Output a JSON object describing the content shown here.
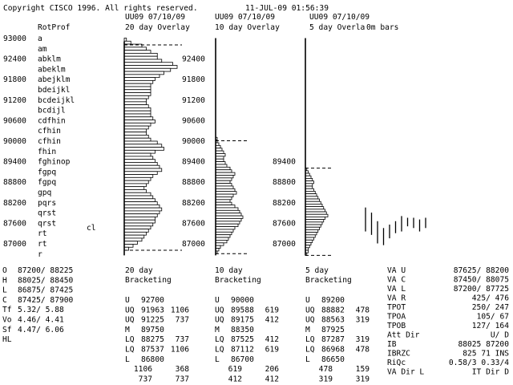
{
  "header": {
    "copyright": "Copyright CISCO 1996. All rights reserved.",
    "datetime": "11-JUL-09 01:56:39",
    "symbols": [
      "UU09 07/10/09",
      "UU09 07/10/09",
      "UU09 07/10/09"
    ],
    "titles": [
      "20 day Overlay",
      "10 day Overlay",
      "5 day Overla",
      "0m  bars"
    ],
    "rotprof_label": "RotProf",
    "cl_label": "cl"
  },
  "profile_rows": [
    {
      "price": "93000",
      "letters": "a"
    },
    {
      "price": "",
      "letters": "am"
    },
    {
      "price": "92400",
      "letters": "abklm"
    },
    {
      "price": "",
      "letters": "abeklm"
    },
    {
      "price": "91800",
      "letters": "abejklm"
    },
    {
      "price": "",
      "letters": "bdeijkl"
    },
    {
      "price": "91200",
      "letters": "bcdeijkl"
    },
    {
      "price": "",
      "letters": "bcdijl"
    },
    {
      "price": "90600",
      "letters": "cdfhin"
    },
    {
      "price": "",
      "letters": "cfhin"
    },
    {
      "price": "90000",
      "letters": "cfhin"
    },
    {
      "price": "",
      "letters": "fhin"
    },
    {
      "price": "89400",
      "letters": "fghinop"
    },
    {
      "price": "",
      "letters": "fgpq"
    },
    {
      "price": "88800",
      "letters": "fgpq"
    },
    {
      "price": "",
      "letters": "gpq"
    },
    {
      "price": "88200",
      "letters": "pqrs"
    },
    {
      "price": "",
      "letters": "qrst"
    },
    {
      "price": "87600",
      "letters": "qrst"
    },
    {
      "price": "",
      "letters": "rt"
    },
    {
      "price": "87000",
      "letters": "rt"
    },
    {
      "price": "",
      "letters": "r"
    }
  ],
  "axis_labels": {
    "panel20": [
      "92400",
      "91800",
      "91200",
      "90600",
      "90000",
      "89400",
      "88800",
      "88200",
      "87600",
      "87000"
    ],
    "panel10": [
      "89400",
      "88800",
      "88200",
      "87600",
      "87000"
    ]
  },
  "ohlc": [
    {
      "label": "O",
      "value": "87200/ 88225"
    },
    {
      "label": "H",
      "value": "88025/ 88450"
    },
    {
      "label": "L",
      "value": "86875/ 87425"
    },
    {
      "label": "C",
      "value": "87425/ 87900"
    },
    {
      "label": "Tf",
      "value": "5.32/     5.88"
    },
    {
      "label": "Vo",
      "value": "4.46/     4.41"
    },
    {
      "label": "Sf",
      "value": "4.47/     6.06"
    },
    {
      "label": "HL",
      "value": ""
    }
  ],
  "bracketing": [
    {
      "days": "20 day",
      "title": "Bracketing",
      "rows": [
        {
          "label": "U",
          "value": "92700",
          "extra": ""
        },
        {
          "label": "UQ",
          "value": "91963",
          "extra": "1106"
        },
        {
          "label": "UQ",
          "value": "91225",
          "extra": "737"
        },
        {
          "label": "M",
          "value": "89750",
          "extra": ""
        },
        {
          "label": "LQ",
          "value": "88275",
          "extra": "737"
        },
        {
          "label": "LQ",
          "value": "87537",
          "extra": "1106"
        },
        {
          "label": "L",
          "value": "86800",
          "extra": ""
        }
      ],
      "totals": [
        [
          "1106",
          "368"
        ],
        [
          "737",
          "737"
        ]
      ]
    },
    {
      "days": "10 day",
      "title": "Bracketing",
      "rows": [
        {
          "label": "U",
          "value": "90000",
          "extra": ""
        },
        {
          "label": "UQ",
          "value": "89588",
          "extra": "619"
        },
        {
          "label": "UQ",
          "value": "89175",
          "extra": "412"
        },
        {
          "label": "M",
          "value": "88350",
          "extra": ""
        },
        {
          "label": "LQ",
          "value": "87525",
          "extra": "412"
        },
        {
          "label": "LQ",
          "value": "87112",
          "extra": "619"
        },
        {
          "label": "L",
          "value": "86700",
          "extra": ""
        }
      ],
      "totals": [
        [
          "619",
          "206"
        ],
        [
          "412",
          "412"
        ]
      ]
    },
    {
      "days": "5 day",
      "title": "Bracketing",
      "rows": [
        {
          "label": "U",
          "value": "89200",
          "extra": ""
        },
        {
          "label": "UQ",
          "value": "88882",
          "extra": "478"
        },
        {
          "label": "UQ",
          "value": "88563",
          "extra": "319"
        },
        {
          "label": "M",
          "value": "87925",
          "extra": ""
        },
        {
          "label": "LQ",
          "value": "87287",
          "extra": "319"
        },
        {
          "label": "LQ",
          "value": "86968",
          "extra": "478"
        },
        {
          "label": "L",
          "value": "86650",
          "extra": ""
        }
      ],
      "totals": [
        [
          "478",
          "159"
        ],
        [
          "319",
          "319"
        ]
      ]
    }
  ],
  "stats": [
    {
      "label": "VA U",
      "value": "87625/ 88200"
    },
    {
      "label": "VA C",
      "value": "87450/ 88075"
    },
    {
      "label": "VA L",
      "value": "87200/ 87725"
    },
    {
      "label": "VA R",
      "value": "425/    476"
    },
    {
      "label": "TPOT",
      "value": "250/    247"
    },
    {
      "label": "TPOA",
      "value": "105/     67"
    },
    {
      "label": "TPOB",
      "value": "127/    164"
    },
    {
      "label": "Att Dir",
      "value": "U/     D"
    },
    {
      "label": "IB",
      "value": "88025  87200"
    },
    {
      "label": "IBRZC",
      "value": "825  71 INS"
    },
    {
      "label": "RiQc",
      "value": "0.58/3 0.33/4"
    },
    {
      "label": "VA Dir L",
      "value": "IT Dir D"
    }
  ],
  "chart_data": [
    {
      "type": "bar",
      "title": "20 day Overlay",
      "orientation": "horizontal",
      "price_high": 93000,
      "price_low": 86800,
      "values": [
        1,
        3,
        8,
        10,
        12,
        15,
        15,
        17,
        22,
        24,
        21,
        18,
        16,
        14,
        13,
        12,
        12,
        12,
        12,
        11,
        10,
        10,
        11,
        12,
        12,
        12,
        13,
        14,
        12,
        11,
        10,
        10,
        11,
        12,
        15,
        17,
        18,
        14,
        12,
        13,
        14,
        15,
        16,
        17,
        15,
        13,
        12,
        11,
        10,
        9,
        10,
        12,
        13,
        14,
        15,
        16,
        17,
        16,
        15,
        14,
        14,
        13,
        12,
        11,
        10,
        9,
        8,
        6,
        4,
        2
      ],
      "reference_lines": [
        {
          "price": 92800,
          "style": "dashed"
        },
        {
          "price": 86800,
          "style": "dashed"
        }
      ],
      "axis_line_price_range": [
        86650,
        92900
      ]
    },
    {
      "type": "bar",
      "title": "10 day Overlay",
      "orientation": "horizontal",
      "price_high": 90100,
      "price_low": 86700,
      "values": [
        1,
        1,
        2,
        3,
        4,
        5,
        6,
        5,
        5,
        6,
        7,
        9,
        10,
        12,
        11,
        10,
        9,
        10,
        11,
        12,
        13,
        11,
        10,
        9,
        10,
        12,
        14,
        15,
        16,
        17,
        16,
        15,
        14,
        12,
        11,
        10,
        9,
        8,
        7,
        5,
        3,
        2,
        1
      ],
      "reference_lines": [
        {
          "price": 90000,
          "style": "dashed"
        },
        {
          "price": 86700,
          "style": "dashed"
        }
      ],
      "axis_line_price_range": [
        86650,
        93000
      ]
    },
    {
      "type": "bar",
      "title": "5 day Overla",
      "orientation": "horizontal",
      "price_high": 89200,
      "price_low": 86650,
      "values": [
        1,
        2,
        3,
        4,
        5,
        6,
        5,
        5,
        6,
        7,
        8,
        9,
        10,
        11,
        12,
        13,
        14,
        15,
        16,
        14,
        13,
        12,
        11,
        10,
        9,
        8,
        7,
        6,
        5,
        4,
        3,
        2,
        2,
        1
      ],
      "reference_lines": [
        {
          "price": 89200,
          "style": "dashed"
        },
        {
          "price": 86650,
          "style": "dashed"
        }
      ],
      "axis_line_price_range": [
        86650,
        93000
      ]
    },
    {
      "type": "ohlc_ranges",
      "title": "0m  bars",
      "bars": [
        {
          "high": 88050,
          "low": 87350
        },
        {
          "high": 87900,
          "low": 87250
        },
        {
          "high": 87650,
          "low": 87000
        },
        {
          "high": 87450,
          "low": 86950
        },
        {
          "high": 87550,
          "low": 87150
        },
        {
          "high": 87650,
          "low": 87300
        },
        {
          "high": 87800,
          "low": 87350
        },
        {
          "high": 87750,
          "low": 87500
        },
        {
          "high": 87750,
          "low": 87450
        },
        {
          "high": 87700,
          "low": 87350
        },
        {
          "high": 87750,
          "low": 87450
        }
      ]
    }
  ]
}
